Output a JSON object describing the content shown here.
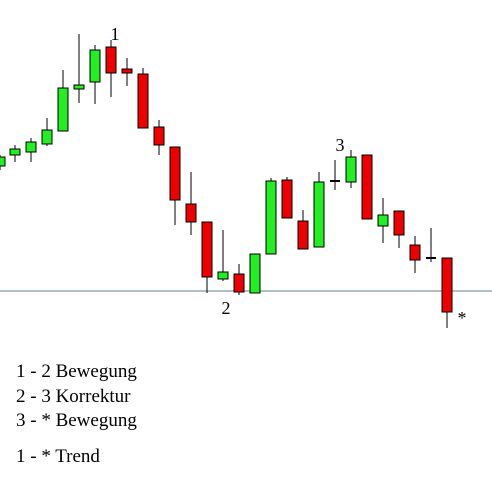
{
  "labels": [
    "1",
    "2",
    "3",
    "*"
  ],
  "legend": [
    "1 -  2 Bewegung",
    "2 - 3 Korrektur",
    "3 - * Bewegung",
    "1 - * Trend"
  ]
}
